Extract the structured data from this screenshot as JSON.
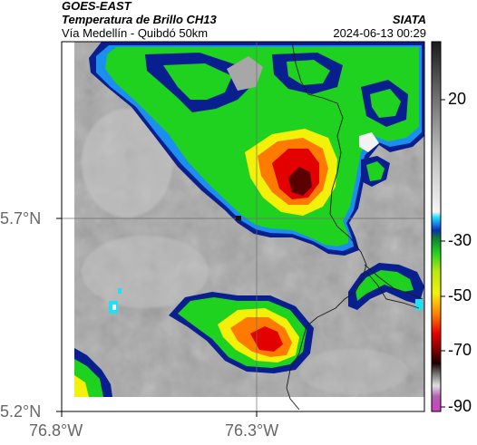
{
  "header": {
    "title": "GOES-EAST",
    "subtitle": "Temperatura de Brillo CH13",
    "route": "Vía Medellín - Quibdó 50km",
    "source": "SIATA",
    "datetime": "2024-06-13 00:29"
  },
  "map": {
    "lat_labels": [
      "5.7°N",
      "5.2°N"
    ],
    "lon_labels": [
      "76.8°W",
      "76.3°W"
    ]
  },
  "colorbar": {
    "labels": [
      "20",
      "-30",
      "-50",
      "-70",
      "-90"
    ]
  },
  "colors": {
    "land_gray": "#a9a9a9",
    "cold_dark_blue": "#0a1f8f",
    "green": "#1fd21f",
    "yellow": "#f3f10a",
    "orange": "#ff7a00",
    "red": "#e30000",
    "dark_red": "#5b0000"
  }
}
